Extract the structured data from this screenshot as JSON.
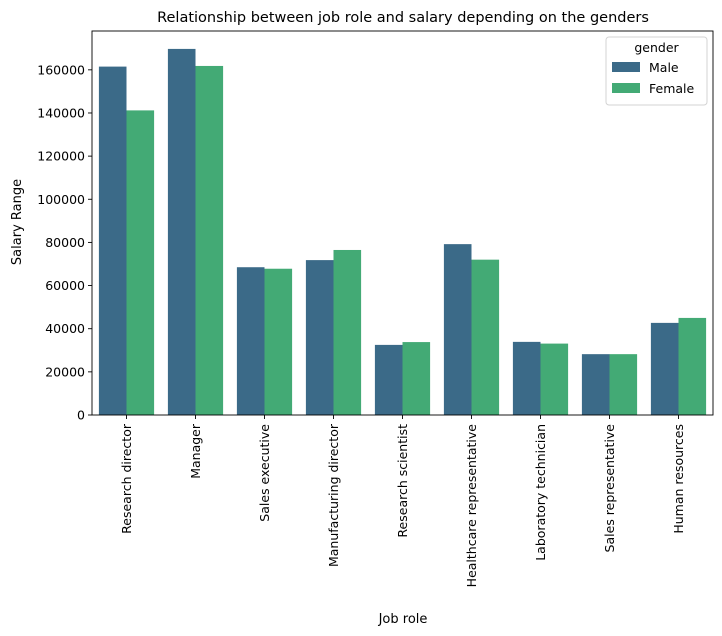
{
  "chart_data": {
    "type": "bar",
    "title": "Relationship between job role and salary depending on the genders",
    "xlabel": "Job role",
    "ylabel": "Salary Range",
    "categories": [
      "Research director",
      "Manager",
      "Sales executive",
      "Manufacturing director",
      "Research scientist",
      "Healthcare representative",
      "Laboratory technician",
      "Sales representative",
      "Human resources"
    ],
    "series": [
      {
        "name": "Male",
        "color": "#3b6a88",
        "values": [
          161500,
          169700,
          68500,
          71800,
          32500,
          79200,
          33900,
          28200,
          42700
        ]
      },
      {
        "name": "Female",
        "color": "#43aa75",
        "values": [
          141200,
          161800,
          67800,
          76500,
          33800,
          72000,
          33100,
          28200,
          45000
        ]
      }
    ],
    "yticks": [
      0,
      20000,
      40000,
      60000,
      80000,
      100000,
      120000,
      140000,
      160000
    ],
    "ylim": [
      0,
      178000
    ],
    "grid": false,
    "legend": {
      "title": "gender",
      "position": "top-right"
    }
  }
}
